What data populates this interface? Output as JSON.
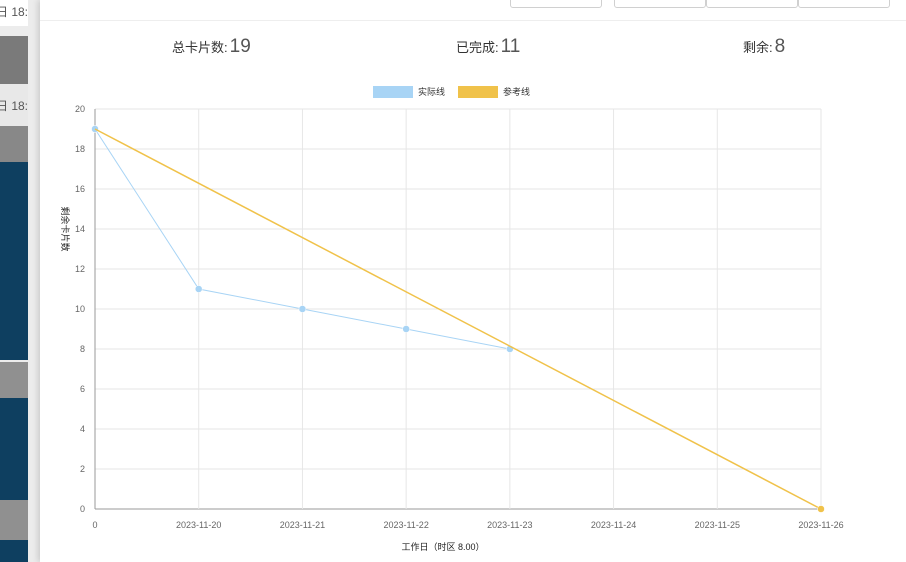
{
  "background": {
    "left_labels": [
      "日 18:",
      "日 18:"
    ]
  },
  "stats": {
    "total_label": "总卡片数:",
    "total_value": "19",
    "done_label": "已完成:",
    "done_value": "11",
    "remaining_label": "剩余:",
    "remaining_value": "8"
  },
  "colors": {
    "actual": "#a8d4f5",
    "reference": "#f0c24a",
    "grid": "#e6e6e6",
    "left_panel_dark": "#0e3f60"
  },
  "chart_data": {
    "type": "line",
    "categories": [
      "0",
      "2023-11-20",
      "2023-11-21",
      "2023-11-22",
      "2023-11-23",
      "2023-11-24",
      "2023-11-25",
      "2023-11-26"
    ],
    "series": [
      {
        "name": "实际线",
        "values": [
          19,
          11,
          10,
          9,
          8,
          null,
          null,
          null
        ]
      },
      {
        "name": "参考线",
        "values": [
          19,
          null,
          null,
          null,
          null,
          null,
          null,
          0
        ]
      }
    ],
    "xlabel": "工作日（时区 8.00）",
    "ylabel": "剩余卡片数",
    "ylim": [
      0,
      20
    ],
    "yticks": [
      0,
      2,
      4,
      6,
      8,
      10,
      12,
      14,
      16,
      18,
      20
    ],
    "grid": true,
    "legend_position": "top"
  }
}
